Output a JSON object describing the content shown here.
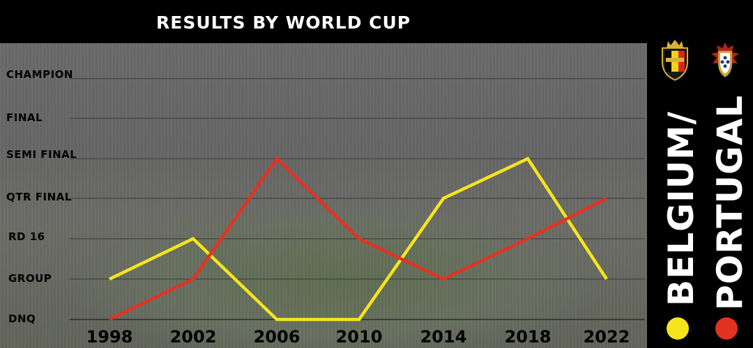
{
  "header": {
    "title": "RESULTS BY WORLD CUP"
  },
  "legend": {
    "belgium_label": "BELGIUM/",
    "portugal_label": "PORTUGAL",
    "belgium_color": "#f7e51b",
    "portugal_color": "#e43222",
    "belgium_crest": "belgium-crest-icon",
    "portugal_crest": "portugal-crest-icon"
  },
  "chart_data": {
    "type": "line",
    "title": "RESULTS BY WORLD CUP",
    "x": [
      "1998",
      "2002",
      "2006",
      "2010",
      "2014",
      "2018",
      "2022"
    ],
    "y_categories": [
      "DNQ",
      "GROUP",
      "RD 16",
      "QTR FINAL",
      "SEMI FINAL",
      "FINAL",
      "CHAMPION"
    ],
    "series": [
      {
        "name": "BELGIUM",
        "color": "#f7e51b",
        "values": [
          "GROUP",
          "RD 16",
          "DNQ",
          "DNQ",
          "QTR FINAL",
          "SEMI FINAL",
          "GROUP"
        ]
      },
      {
        "name": "PORTUGAL",
        "color": "#e43222",
        "values": [
          "DNQ",
          "GROUP",
          "SEMI FINAL",
          "RD 16",
          "GROUP",
          "RD 16",
          "QTR FINAL"
        ]
      }
    ],
    "grid": true,
    "legend_position": "right"
  }
}
